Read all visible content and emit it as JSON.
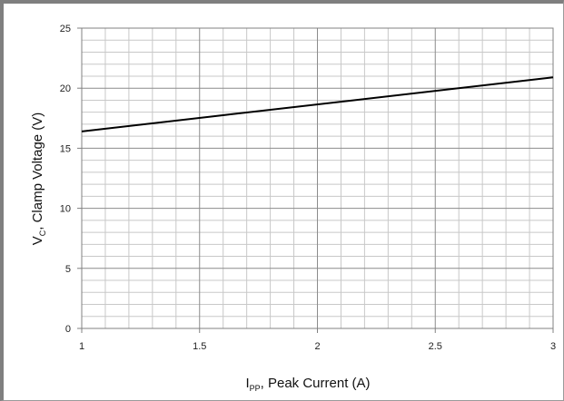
{
  "chart_data": {
    "type": "line",
    "title": "",
    "xlabel": {
      "main": "I",
      "sub": "PP",
      "rest": ", Peak Current (A)"
    },
    "ylabel": {
      "main": "V",
      "sub": "C",
      "rest": ", Clamp Voltage (V)"
    },
    "xlim": [
      1,
      3
    ],
    "ylim": [
      0,
      25
    ],
    "x_ticks": [
      1,
      1.5,
      2,
      2.5,
      3
    ],
    "x_tick_labels": [
      "1",
      "1.5",
      "2",
      "2.5",
      "3"
    ],
    "y_ticks": [
      0,
      5,
      10,
      15,
      20,
      25
    ],
    "y_tick_labels": [
      "0",
      "5",
      "10",
      "15",
      "20",
      "25"
    ],
    "x_minor_step": 0.1,
    "y_minor_step": 1,
    "grid": true,
    "legend": "none",
    "series": [
      {
        "x": [
          1,
          3
        ],
        "y": [
          16.4,
          20.9
        ],
        "color": "#000000"
      }
    ]
  }
}
